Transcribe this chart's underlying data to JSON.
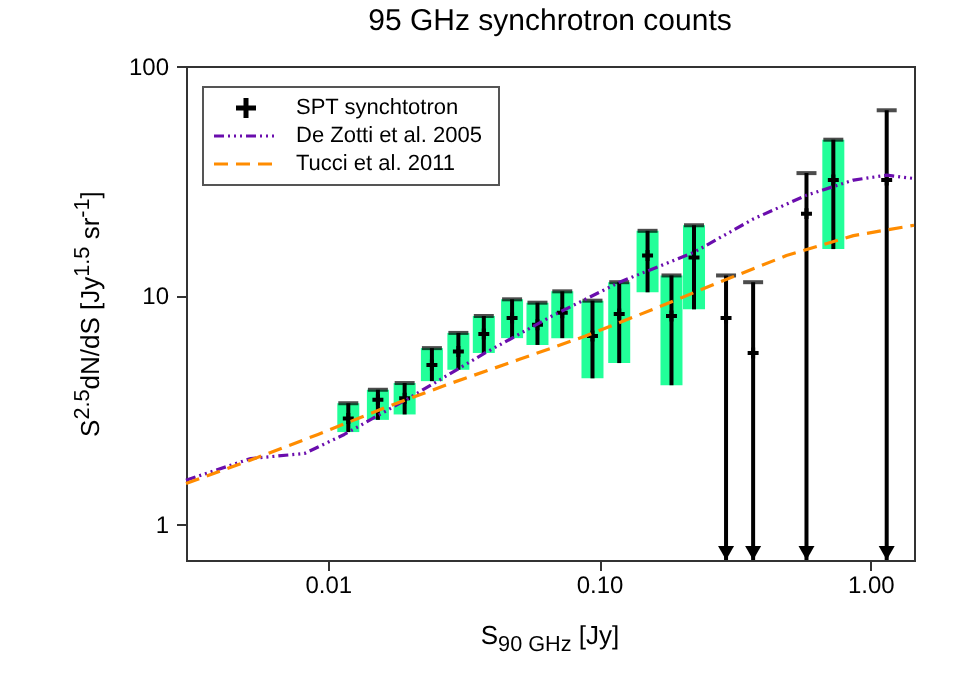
{
  "chart_data": {
    "type": "scatter",
    "title": "95 GHz synchrotron counts",
    "xlabel": "S$_{90 GHz}$ [Jy]",
    "ylabel": "S$^{2.5}$dN/dS [Jy$^{1.5}$ sr$^{-1}$]",
    "xlim": [
      0.003,
      1.45
    ],
    "ylim": [
      0.7,
      100
    ],
    "xticks": [
      0.01,
      {
        "value": 0.1,
        "label": "0.10"
      },
      {
        "value": 1,
        "label": "1.00"
      }
    ],
    "yticks": [
      1,
      10,
      100
    ],
    "log": "xy",
    "grid": false,
    "legend": "top left",
    "series": [
      {
        "type": "bar",
        "color": "#22ff99",
        "x": [
          0.0119,
          0.0153,
          0.0192,
          0.0242,
          0.0303,
          0.0376,
          0.0478,
          0.0593,
          0.0732,
          0.0946,
          0.1187,
          0.151,
          0.185,
          0.224,
          0.731
        ],
        "base": [
          2.53,
          2.86,
          3.02,
          4.22,
          4.73,
          5.6,
          6.5,
          6.07,
          6.5,
          4.34,
          5.06,
          10.3,
          4.05,
          8.68,
          15.9
        ],
        "values": [
          0.85,
          1.01,
          1.12,
          1.66,
          2.12,
          2.52,
          3.1,
          3.21,
          3.9,
          5.13,
          6.34,
          8.8,
          8.15,
          11.52,
          31.8
        ]
      },
      {
        "name": "SPT synchtotron",
        "color": "#000000",
        "marker": "cross",
        "x": [
          0.0119,
          0.0153,
          0.0192,
          0.0242,
          0.0303,
          0.0376,
          0.0478,
          0.0593,
          0.0732,
          0.0946,
          0.1187,
          0.151,
          0.185,
          0.224,
          0.294,
          0.37,
          0.582,
          0.731,
          1.15
        ],
        "values": [
          2.9,
          3.5,
          3.55,
          4.96,
          5.68,
          6.77,
          7.96,
          7.43,
          8.39,
          6.64,
          8.28,
          14.9,
          8.12,
          14.6,
          7.96,
          5.6,
          22.7,
          31.8,
          31.8
        ],
        "errors": [
          [
            2.53,
            3.38
          ],
          [
            2.86,
            3.87
          ],
          [
            3.02,
            4.14
          ],
          [
            4.22,
            5.88
          ],
          [
            4.73,
            6.85
          ],
          [
            5.6,
            8.12
          ],
          [
            6.5,
            9.6
          ],
          [
            6.07,
            9.28
          ],
          [
            6.5,
            10.4
          ],
          [
            4.34,
            9.47
          ],
          [
            5.06,
            11.4
          ],
          [
            10.3,
            19.1
          ],
          [
            4.05,
            12.2
          ],
          [
            8.68,
            20.2
          ],
          [
            0.7,
            12.2
          ],
          [
            0.7,
            11.4
          ],
          [
            0.7,
            34.1
          ],
          [
            15.9,
            47.7
          ],
          [
            0.7,
            64.1
          ]
        ]
      },
      {
        "type": "line",
        "name": "De Zotti et al. 2005",
        "color": "#6a0dad",
        "line_style": "dotted",
        "x": [
          0.003,
          0.0052,
          0.0082,
          0.0115,
          0.0204,
          0.038,
          0.0671,
          0.119,
          0.224,
          0.37,
          0.582,
          0.868,
          1.15,
          1.45
        ],
        "values": [
          1.56,
          1.94,
          2.04,
          2.47,
          3.62,
          5.6,
          8.12,
          11.4,
          15.4,
          21.5,
          27.3,
          31.8,
          33.4,
          32.3
        ]
      },
      {
        "type": "line",
        "name": "Tucci et al. 2011",
        "color": "#ff8c00",
        "line_style": "dashed",
        "x": [
          0.003,
          0.0052,
          0.0092,
          0.0162,
          0.0286,
          0.0506,
          0.0892,
          0.158,
          0.278,
          0.491,
          0.867,
          1.45
        ],
        "values": [
          1.51,
          1.91,
          2.47,
          3.23,
          4.14,
          5.24,
          6.64,
          8.68,
          11.4,
          14.9,
          18.2,
          20.2
        ]
      }
    ]
  }
}
